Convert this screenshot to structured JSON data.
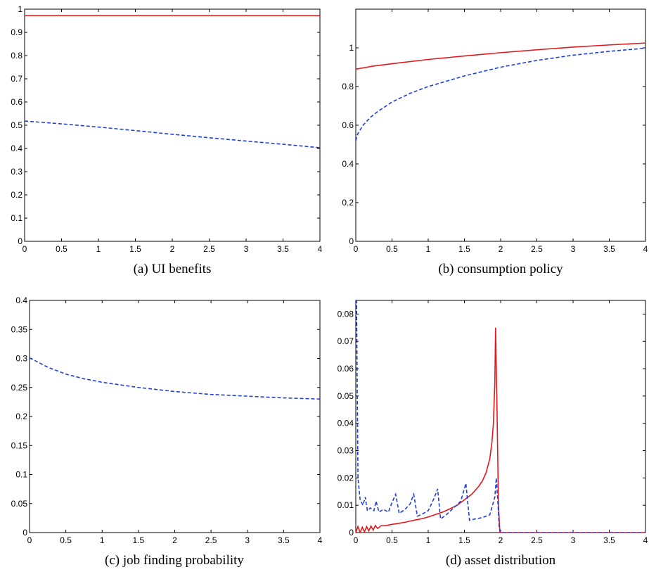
{
  "chart_data": [
    {
      "type": "line",
      "caption": "(a) UI benefits",
      "xlim": [
        0,
        4
      ],
      "ylim": [
        0,
        1
      ],
      "xticks": [
        0,
        0.5,
        1,
        1.5,
        2,
        2.5,
        3,
        3.5,
        4
      ],
      "yticks": [
        0,
        0.1,
        0.2,
        0.3,
        0.4,
        0.5,
        0.6,
        0.7,
        0.8,
        0.9,
        1
      ],
      "grid": false,
      "series": [
        {
          "color": "#e31a1c",
          "dash": "solid",
          "x": [
            0,
            4
          ],
          "y": [
            0.972,
            0.972
          ]
        },
        {
          "color": "#1f3fd6",
          "dash": "dashed",
          "x": [
            0,
            0.5,
            1,
            1.5,
            2,
            2.5,
            3,
            3.5,
            4
          ],
          "y": [
            0.518,
            0.506,
            0.492,
            0.477,
            0.461,
            0.446,
            0.432,
            0.418,
            0.403
          ]
        }
      ]
    },
    {
      "type": "line",
      "caption": "(b) consumption policy",
      "xlim": [
        0,
        4
      ],
      "ylim": [
        0,
        1.2
      ],
      "xticks": [
        0,
        0.5,
        1,
        1.5,
        2,
        2.5,
        3,
        3.5,
        4
      ],
      "yticks": [
        0,
        0.2,
        0.4,
        0.6,
        0.8,
        1
      ],
      "grid": false,
      "series": [
        {
          "color": "#e31a1c",
          "dash": "solid",
          "x": [
            0,
            0.25,
            0.5,
            1,
            1.5,
            2,
            2.5,
            3,
            3.5,
            4
          ],
          "y": [
            0.89,
            0.906,
            0.918,
            0.94,
            0.958,
            0.975,
            0.99,
            1.004,
            1.015,
            1.025
          ]
        },
        {
          "color": "#1f3fd6",
          "dash": "dashed",
          "x": [
            0,
            0.02,
            0.05,
            0.1,
            0.2,
            0.3,
            0.5,
            0.75,
            1,
            1.5,
            2,
            2.5,
            3,
            3.5,
            4
          ],
          "y": [
            0.52,
            0.55,
            0.57,
            0.6,
            0.64,
            0.67,
            0.72,
            0.765,
            0.8,
            0.855,
            0.9,
            0.935,
            0.962,
            0.982,
            0.998
          ]
        }
      ]
    },
    {
      "type": "line",
      "caption": "(c) job finding probability",
      "xlim": [
        0,
        4
      ],
      "ylim": [
        0,
        0.4
      ],
      "xticks": [
        0,
        0.5,
        1,
        1.5,
        2,
        2.5,
        3,
        3.5,
        4
      ],
      "yticks": [
        0,
        0.05,
        0.1,
        0.15,
        0.2,
        0.25,
        0.3,
        0.35,
        0.4
      ],
      "grid": false,
      "series": [
        {
          "color": "#1f3fd6",
          "dash": "dashed",
          "x": [
            0,
            0.25,
            0.5,
            0.75,
            1,
            1.5,
            2,
            2.5,
            3,
            3.5,
            4
          ],
          "y": [
            0.301,
            0.285,
            0.273,
            0.265,
            0.259,
            0.25,
            0.243,
            0.238,
            0.235,
            0.232,
            0.23
          ]
        }
      ]
    },
    {
      "type": "line",
      "caption": "(d) asset distribution",
      "xlim": [
        0,
        4
      ],
      "ylim": [
        0,
        0.085
      ],
      "xticks": [
        0,
        0.5,
        1,
        1.5,
        2,
        2.5,
        3,
        3.5,
        4
      ],
      "yticks": [
        0,
        0.01,
        0.02,
        0.03,
        0.04,
        0.05,
        0.06,
        0.07,
        0.08
      ],
      "grid": false,
      "series": [
        {
          "color": "#e31a1c",
          "dash": "solid",
          "x": [
            0,
            0.03,
            0.06,
            0.09,
            0.12,
            0.15,
            0.18,
            0.21,
            0.24,
            0.27,
            0.3,
            0.35,
            0.4,
            0.5,
            0.6,
            0.7,
            0.8,
            0.9,
            1.0,
            1.1,
            1.2,
            1.3,
            1.4,
            1.5,
            1.6,
            1.7,
            1.75,
            1.8,
            1.85,
            1.88,
            1.9,
            1.92,
            1.93,
            1.95,
            1.97,
            1.99,
            4
          ],
          "y": [
            0,
            0.0022,
            0,
            0.002,
            0.0003,
            0.0022,
            0.0006,
            0.0024,
            0.0009,
            0.0026,
            0.0015,
            0.0025,
            0.0025,
            0.003,
            0.0034,
            0.0039,
            0.0045,
            0.005,
            0.0057,
            0.0066,
            0.0075,
            0.0087,
            0.01,
            0.012,
            0.014,
            0.017,
            0.019,
            0.022,
            0.027,
            0.033,
            0.04,
            0.055,
            0.075,
            0.045,
            0.01,
            0,
            0
          ]
        },
        {
          "color": "#1f3fd6",
          "dash": "dashed",
          "x": [
            0,
            0.01,
            0.03,
            0.06,
            0.1,
            0.13,
            0.16,
            0.2,
            0.25,
            0.28,
            0.32,
            0.38,
            0.45,
            0.5,
            0.55,
            0.6,
            0.68,
            0.75,
            0.8,
            0.85,
            0.9,
            1.0,
            1.08,
            1.13,
            1.17,
            1.25,
            1.35,
            1.45,
            1.52,
            1.57,
            1.65,
            1.75,
            1.85,
            1.92,
            1.94,
            1.96,
            1.98,
            2.0,
            4
          ],
          "y": [
            0.085,
            0.085,
            0.02,
            0.012,
            0.01,
            0.013,
            0.008,
            0.009,
            0.008,
            0.0115,
            0.0075,
            0.0085,
            0.0075,
            0.011,
            0.014,
            0.007,
            0.0085,
            0.0105,
            0.014,
            0.006,
            0.0065,
            0.008,
            0.0125,
            0.016,
            0.005,
            0.0065,
            0.009,
            0.0115,
            0.018,
            0.0045,
            0.005,
            0.0055,
            0.0065,
            0.013,
            0.02,
            0.012,
            0.002,
            0,
            0
          ]
        }
      ]
    }
  ]
}
